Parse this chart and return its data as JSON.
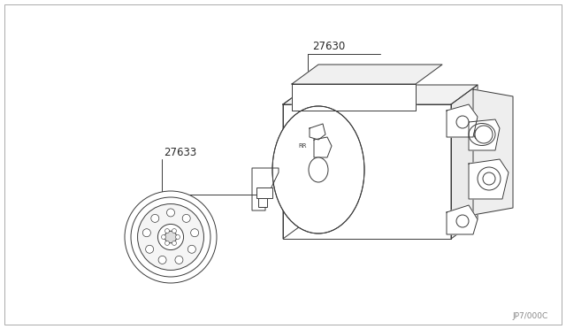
{
  "bg_color": "#ffffff",
  "fig_width": 6.4,
  "fig_height": 3.72,
  "dpi": 100,
  "label_27630": "27630",
  "label_27633": "27633",
  "part_number": "JP7/000C",
  "line_color": "#3a3a3a",
  "text_color": "#2a2a2a",
  "font_size_labels": 8.5,
  "font_size_part": 6.5,
  "border_color": "#aaaaaa"
}
